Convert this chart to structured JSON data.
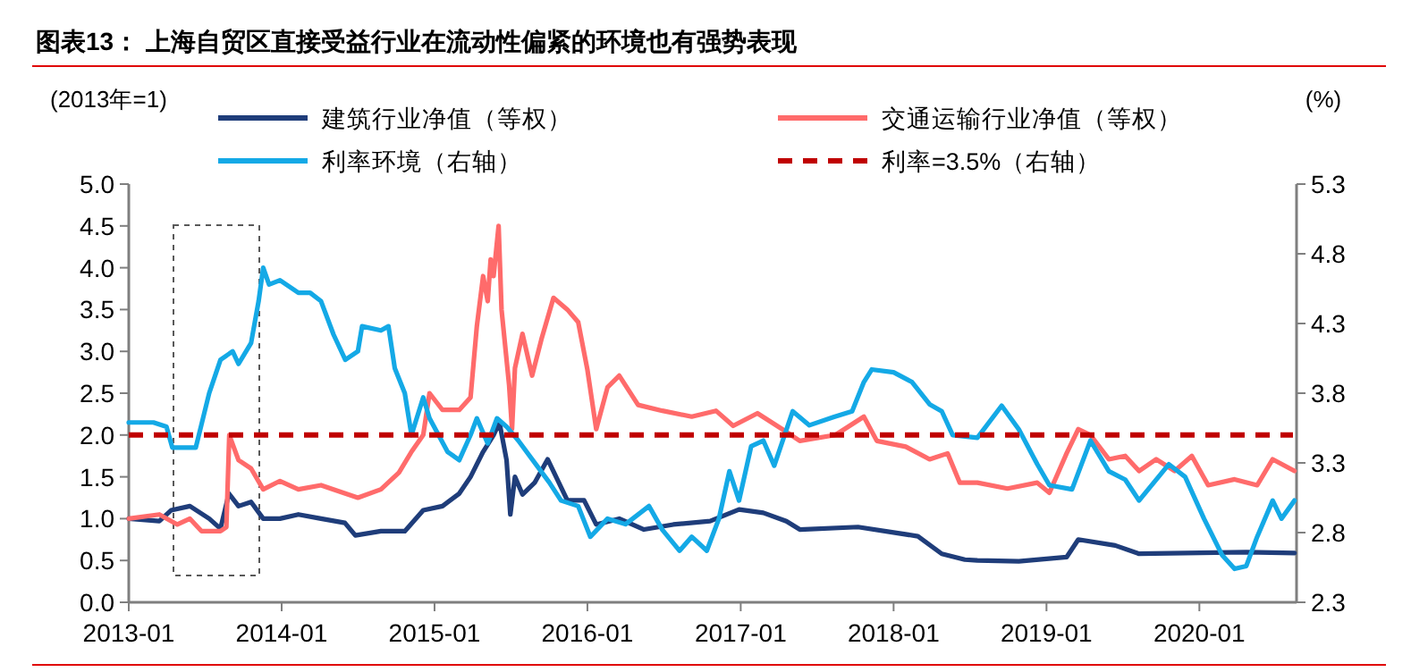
{
  "chart_data": {
    "type": "line",
    "title": "图表13：  上海自贸区直接受益行业在流动性偏紧的环境也有强势表现",
    "ylabel": "(2013年=1)",
    "y2label": "(%)",
    "legend": "top",
    "grid": false,
    "xlim": [
      "2013-01-01",
      "2020-08-20"
    ],
    "xticks": [
      "2013-01",
      "2014-01",
      "2015-01",
      "2016-01",
      "2017-01",
      "2018-01",
      "2019-01",
      "2020-01"
    ],
    "ylim": [
      0,
      5
    ],
    "yticks": [
      {
        "value": 0,
        "label": "0.0"
      },
      0.5,
      {
        "value": 1,
        "label": "1.0"
      },
      1.5,
      {
        "value": 2,
        "label": "2.0"
      },
      2.5,
      {
        "value": 3,
        "label": "3.0"
      },
      3.5,
      {
        "value": 4,
        "label": "4.0"
      },
      4.5,
      {
        "value": 5,
        "label": "5.0"
      }
    ],
    "y2lim": [
      2.3,
      5.3
    ],
    "y2ticks": [
      2.3,
      2.8,
      3.3,
      3.8,
      4.3,
      4.8,
      5.3
    ],
    "ref_lines": [
      {
        "axis": "y2",
        "value": 3.5,
        "label": "利率=3.5%（右轴）",
        "color": "#c00000",
        "line_style": "dashed"
      }
    ],
    "series": [
      {
        "name": "建筑行业净值（等权）",
        "color": "#1f3d7a",
        "x": [
          "2013-01-01",
          "2013-03-15",
          "2013-04-12",
          "2013-05-27",
          "2013-07-12",
          "2013-08-08",
          "2013-08-28",
          "2013-09-20",
          "2013-10-20",
          "2013-11-18",
          "2013-12-28",
          "2014-02-10",
          "2014-04-05",
          "2014-06-01",
          "2014-06-26",
          "2014-08-26",
          "2014-10-22",
          "2014-12-05",
          "2015-01-20",
          "2015-03-01",
          "2015-03-28",
          "2015-04-27",
          "2015-05-22",
          "2015-06-05",
          "2015-06-22",
          "2015-07-01",
          "2015-07-12",
          "2015-07-30",
          "2015-08-28",
          "2015-09-28",
          "2015-11-14",
          "2015-12-24",
          "2016-01-22",
          "2016-03-17",
          "2016-05-15",
          "2016-07-24",
          "2016-10-20",
          "2016-12-28",
          "2017-02-24",
          "2017-04-20",
          "2017-05-22",
          "2017-10-08",
          "2018-02-28",
          "2018-04-26",
          "2018-06-20",
          "2018-07-20",
          "2018-10-27",
          "2019-02-18",
          "2019-03-18",
          "2019-06-14",
          "2019-08-10",
          "2019-11-28",
          "2020-04-22",
          "2020-08-15"
        ],
        "values": [
          1.0,
          0.97,
          1.1,
          1.15,
          1.0,
          0.88,
          1.3,
          1.15,
          1.2,
          1.0,
          1.0,
          1.05,
          1.0,
          0.95,
          0.8,
          0.85,
          0.85,
          1.1,
          1.15,
          1.3,
          1.5,
          1.8,
          2.0,
          2.15,
          1.7,
          1.05,
          1.5,
          1.29,
          1.43,
          1.71,
          1.22,
          1.22,
          0.93,
          1.0,
          0.87,
          0.93,
          0.97,
          1.11,
          1.07,
          0.97,
          0.87,
          0.9,
          0.79,
          0.58,
          0.51,
          0.5,
          0.49,
          0.54,
          0.75,
          0.68,
          0.58,
          0.59,
          0.6,
          0.59
        ]
      },
      {
        "name": "交通运输行业净值（等权）",
        "color": "#ff6b6b",
        "x": [
          "2013-01-01",
          "2013-03-15",
          "2013-04-27",
          "2013-05-27",
          "2013-06-24",
          "2013-08-08",
          "2013-08-22",
          "2013-08-29",
          "2013-09-20",
          "2013-10-20",
          "2013-11-18",
          "2013-12-28",
          "2014-02-10",
          "2014-04-05",
          "2014-06-02",
          "2014-07-02",
          "2014-08-26",
          "2014-10-08",
          "2014-11-07",
          "2014-12-05",
          "2014-12-20",
          "2015-01-20",
          "2015-03-01",
          "2015-03-28",
          "2015-04-12",
          "2015-04-27",
          "2015-05-08",
          "2015-05-15",
          "2015-05-22",
          "2015-06-03",
          "2015-06-10",
          "2015-06-28",
          "2015-07-05",
          "2015-07-12",
          "2015-07-30",
          "2015-08-22",
          "2015-09-13",
          "2015-10-12",
          "2015-11-14",
          "2015-12-10",
          "2016-01-01",
          "2016-01-22",
          "2016-02-18",
          "2016-03-17",
          "2016-05-01",
          "2016-06-28",
          "2016-09-06",
          "2016-11-03",
          "2016-12-14",
          "2017-02-10",
          "2017-04-10",
          "2017-05-22",
          "2017-08-15",
          "2017-10-22",
          "2017-11-22",
          "2018-01-30",
          "2018-03-28",
          "2018-05-10",
          "2018-06-08",
          "2018-07-20",
          "2018-09-30",
          "2018-12-10",
          "2019-01-08",
          "2019-02-18",
          "2019-03-18",
          "2019-04-16",
          "2019-05-30",
          "2019-07-08",
          "2019-08-10",
          "2019-09-20",
          "2019-11-03",
          "2019-12-14",
          "2020-01-22",
          "2020-03-25",
          "2020-05-18",
          "2020-06-24",
          "2020-08-15"
        ],
        "values": [
          1.0,
          1.05,
          0.93,
          1.0,
          0.85,
          0.85,
          0.9,
          2.0,
          1.7,
          1.6,
          1.35,
          1.45,
          1.35,
          1.4,
          1.3,
          1.25,
          1.35,
          1.55,
          1.8,
          2.0,
          2.5,
          2.3,
          2.3,
          2.45,
          3.3,
          3.9,
          3.6,
          4.1,
          3.9,
          4.5,
          3.5,
          2.6,
          2.07,
          2.8,
          3.21,
          2.71,
          3.14,
          3.64,
          3.5,
          3.35,
          2.78,
          2.07,
          2.57,
          2.71,
          2.36,
          2.29,
          2.22,
          2.29,
          2.11,
          2.26,
          2.07,
          1.93,
          2.0,
          2.22,
          1.93,
          1.86,
          1.71,
          1.78,
          1.43,
          1.43,
          1.36,
          1.43,
          1.31,
          1.78,
          2.07,
          2.0,
          1.71,
          1.75,
          1.57,
          1.71,
          1.57,
          1.75,
          1.4,
          1.47,
          1.4,
          1.71,
          1.57
        ]
      },
      {
        "name": "利率环境（右轴）",
        "color": "#14a9e6",
        "axis": "y2",
        "x": [
          "2013-01-01",
          "2013-03-01",
          "2013-04-01",
          "2013-04-15",
          "2013-06-10",
          "2013-07-12",
          "2013-08-08",
          "2013-09-06",
          "2013-09-20",
          "2013-10-20",
          "2013-11-07",
          "2013-11-18",
          "2013-12-02",
          "2013-12-28",
          "2014-02-10",
          "2014-03-10",
          "2014-04-05",
          "2014-05-05",
          "2014-06-02",
          "2014-07-02",
          "2014-07-12",
          "2014-08-26",
          "2014-09-13",
          "2014-09-28",
          "2014-10-22",
          "2014-11-07",
          "2014-12-05",
          "2014-12-20",
          "2015-02-01",
          "2015-03-01",
          "2015-03-28",
          "2015-04-12",
          "2015-05-08",
          "2015-05-30",
          "2015-06-22",
          "2015-07-20",
          "2015-10-02",
          "2015-10-30",
          "2015-12-10",
          "2016-01-08",
          "2016-02-18",
          "2016-04-01",
          "2016-05-27",
          "2016-06-28",
          "2016-08-08",
          "2016-09-06",
          "2016-10-12",
          "2016-11-10",
          "2016-12-05",
          "2016-12-28",
          "2017-01-26",
          "2017-02-24",
          "2017-03-22",
          "2017-05-05",
          "2017-06-14",
          "2017-08-12",
          "2017-09-24",
          "2017-10-22",
          "2017-11-10",
          "2018-01-01",
          "2018-02-14",
          "2018-03-28",
          "2018-04-26",
          "2018-05-22",
          "2018-07-20",
          "2018-09-16",
          "2018-10-27",
          "2018-12-10",
          "2019-01-08",
          "2019-03-03",
          "2019-04-16",
          "2019-05-30",
          "2019-07-08",
          "2019-08-10",
          "2019-10-20",
          "2019-11-28",
          "2020-01-12",
          "2020-02-24",
          "2020-03-25",
          "2020-04-22",
          "2020-05-18",
          "2020-06-24",
          "2020-07-15",
          "2020-08-15"
        ],
        "values": [
          3.59,
          3.59,
          3.56,
          3.41,
          3.41,
          3.8,
          4.04,
          4.1,
          4.01,
          4.16,
          4.46,
          4.7,
          4.58,
          4.61,
          4.52,
          4.52,
          4.46,
          4.22,
          4.04,
          4.1,
          4.28,
          4.25,
          4.28,
          3.98,
          3.8,
          3.5,
          3.77,
          3.62,
          3.38,
          3.32,
          3.5,
          3.62,
          3.44,
          3.62,
          3.56,
          3.46,
          3.16,
          3.03,
          2.99,
          2.77,
          2.9,
          2.86,
          2.99,
          2.82,
          2.67,
          2.77,
          2.67,
          2.9,
          3.24,
          3.03,
          3.42,
          3.46,
          3.28,
          3.67,
          3.57,
          3.63,
          3.67,
          3.88,
          3.97,
          3.95,
          3.88,
          3.72,
          3.67,
          3.5,
          3.48,
          3.71,
          3.54,
          3.29,
          3.14,
          3.11,
          3.46,
          3.24,
          3.18,
          3.03,
          3.29,
          3.2,
          2.9,
          2.64,
          2.54,
          2.56,
          2.77,
          3.03,
          2.9,
          3.03
        ]
      }
    ]
  }
}
